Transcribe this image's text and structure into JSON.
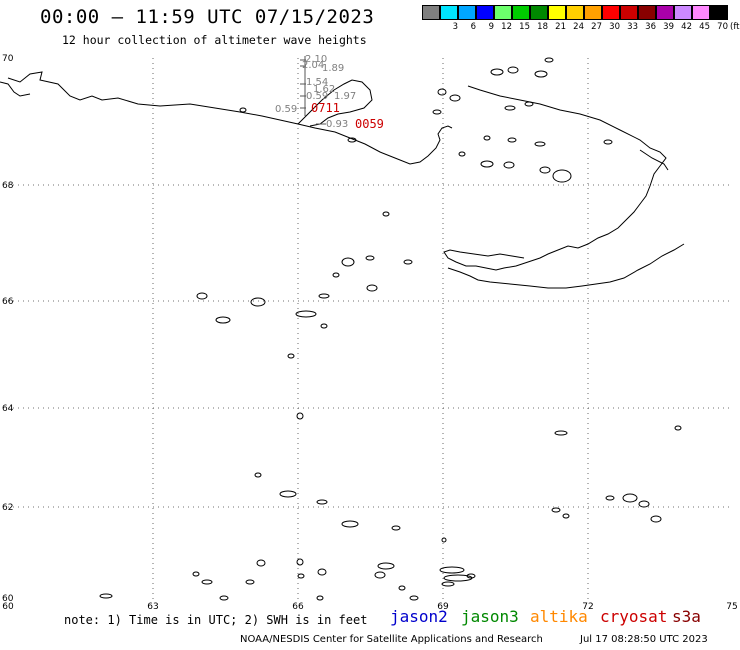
{
  "header": {
    "title": "00:00 – 11:59 UTC 07/15/2023",
    "subtitle": "12 hour collection of altimeter wave heights"
  },
  "legend": {
    "unit": "(ft)",
    "steps": [
      {
        "label": "",
        "color": "#7f7f7f"
      },
      {
        "label": "3",
        "color": "#00e5ff"
      },
      {
        "label": "6",
        "color": "#00a6ff"
      },
      {
        "label": "9",
        "color": "#0000ff"
      },
      {
        "label": "12",
        "color": "#6cff6c"
      },
      {
        "label": "15",
        "color": "#00cc00"
      },
      {
        "label": "18",
        "color": "#008800"
      },
      {
        "label": "21",
        "color": "#ffff00"
      },
      {
        "label": "24",
        "color": "#ffd000"
      },
      {
        "label": "27",
        "color": "#ffa000"
      },
      {
        "label": "30",
        "color": "#ff0000"
      },
      {
        "label": "33",
        "color": "#cc0000"
      },
      {
        "label": "36",
        "color": "#880000"
      },
      {
        "label": "39",
        "color": "#aa00aa"
      },
      {
        "label": "42",
        "color": "#cc88ff"
      },
      {
        "label": "45",
        "color": "#ff88ff"
      },
      {
        "label": "70",
        "color": "#000000"
      }
    ]
  },
  "map": {
    "lon_ticks": [
      "60",
      "63",
      "66",
      "69",
      "72",
      "75"
    ],
    "lat_ticks": [
      "60",
      "62",
      "64",
      "66",
      "68",
      "70"
    ],
    "swh_labels": [
      {
        "text": "2.10",
        "color": "#7f7f7f"
      },
      {
        "text": "2.04",
        "color": "#7f7f7f"
      },
      {
        "text": "1.89",
        "color": "#7f7f7f"
      },
      {
        "text": "1.54",
        "color": "#7f7f7f"
      },
      {
        "text": "1.62",
        "color": "#7f7f7f"
      },
      {
        "text": "0.59",
        "color": "#7f7f7f"
      },
      {
        "text": "1.97",
        "color": "#7f7f7f"
      },
      {
        "text": "0.59",
        "color": "#7f7f7f"
      },
      {
        "text": "0.93",
        "color": "#7f7f7f"
      }
    ],
    "time_labels": [
      {
        "text": "0711",
        "color": "#cc0000"
      },
      {
        "text": "0059",
        "color": "#cc0000"
      }
    ]
  },
  "footer": {
    "note": "note: 1) Time is in UTC; 2) SWH is in feet",
    "satellites": [
      {
        "name": "jason2",
        "color": "#0000cc"
      },
      {
        "name": "jason3",
        "color": "#008800"
      },
      {
        "name": "altika",
        "color": "#ff8800"
      },
      {
        "name": "cryosat",
        "color": "#cc0000"
      },
      {
        "name": "s3a",
        "color": "#880000"
      }
    ],
    "credit": "NOAA/NESDIS Center for Satellite Applications and Research",
    "timestamp": "Jul 17 08:28:50 UTC 2023"
  }
}
